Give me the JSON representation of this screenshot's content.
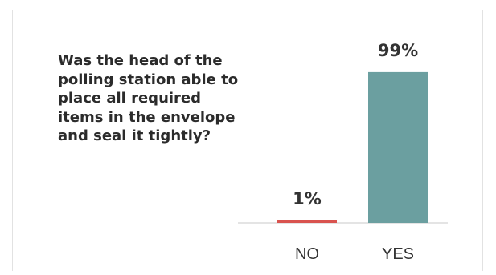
{
  "question": "Was the head of the polling station able to place all required items in the envelope and seal it tightly?",
  "chart_data": {
    "type": "bar",
    "categories": [
      "NO",
      "YES"
    ],
    "values": [
      1,
      99
    ],
    "value_labels": [
      "1%",
      "99%"
    ],
    "ylim": [
      0,
      100
    ],
    "colors": [
      "#d9534f",
      "#6b9fa0"
    ],
    "grid": false,
    "legend": "none"
  }
}
